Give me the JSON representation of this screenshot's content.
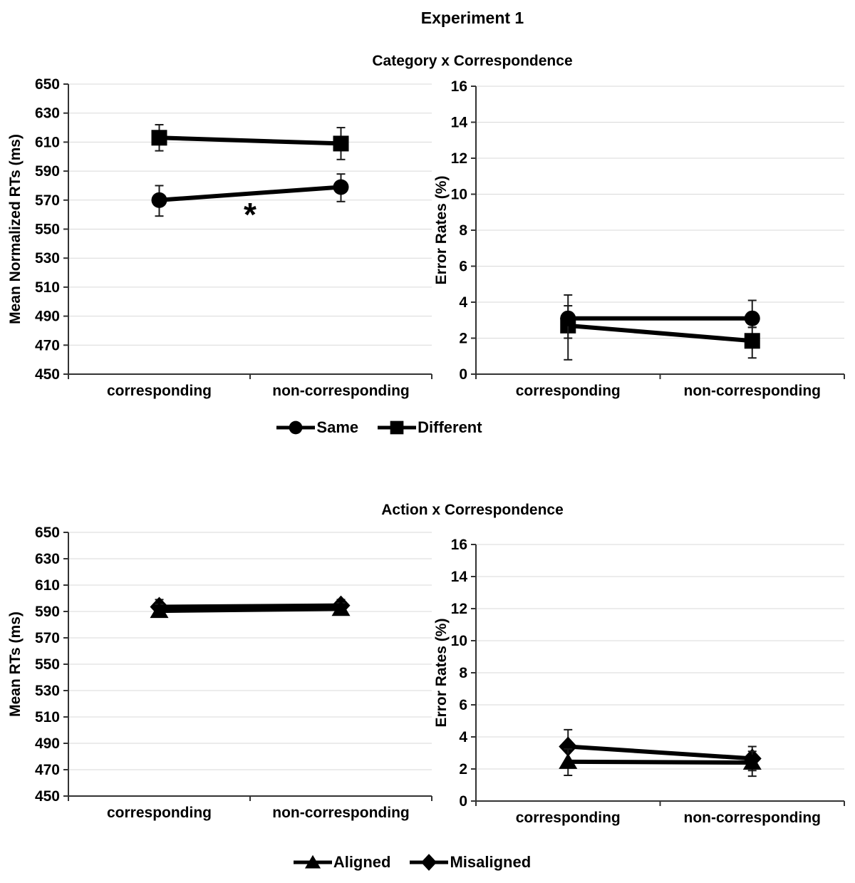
{
  "figure_title": "Experiment 1",
  "colors": {
    "series": "#000000",
    "grid": "#d9d9d9",
    "axis": "#333333",
    "error_bar": "#1a1a1a",
    "text": "#000000",
    "background": "#ffffff"
  },
  "sections": [
    {
      "title": "Category x Correspondence",
      "legend": [
        {
          "label": "Same",
          "marker": "circle"
        },
        {
          "label": "Different",
          "marker": "square"
        }
      ]
    },
    {
      "title": "Action x Correspondence",
      "legend": [
        {
          "label": "Aligned",
          "marker": "triangle"
        },
        {
          "label": "Misaligned",
          "marker": "diamond"
        }
      ]
    }
  ],
  "chart_data": [
    {
      "id": "tl",
      "section": 0,
      "type": "line",
      "ylabel": "Mean Normalized RTs (ms)",
      "ylim": [
        450,
        650
      ],
      "ystep": 20,
      "grid": true,
      "categories": [
        "corresponding",
        "non-corresponding"
      ],
      "series": [
        {
          "name": "Same",
          "marker": "circle",
          "values": [
            570,
            579
          ],
          "err_up": [
            10,
            9
          ],
          "err_dn": [
            11,
            10
          ]
        },
        {
          "name": "Different",
          "marker": "square",
          "values": [
            613,
            609
          ],
          "err_up": [
            9,
            11
          ],
          "err_dn": [
            9,
            11
          ]
        }
      ],
      "annotation": {
        "text": "*",
        "x_frac": 0.5,
        "value": 560
      }
    },
    {
      "id": "tr",
      "section": 0,
      "type": "line",
      "ylabel": "Error Rates (%)",
      "ylim": [
        0,
        16
      ],
      "ystep": 2,
      "grid": true,
      "categories": [
        "corresponding",
        "non-corresponding"
      ],
      "series": [
        {
          "name": "Same",
          "marker": "circle",
          "values": [
            3.1,
            3.1
          ],
          "err_up": [
            1.3,
            1.0
          ],
          "err_dn": [
            1.1,
            0.5
          ]
        },
        {
          "name": "Different",
          "marker": "square",
          "values": [
            2.7,
            1.85
          ],
          "err_up": [
            1.1,
            0.75
          ],
          "err_dn": [
            1.9,
            0.95
          ]
        }
      ]
    },
    {
      "id": "bl",
      "section": 1,
      "type": "line",
      "ylabel": "Mean RTs (ms)",
      "ylim": [
        450,
        650
      ],
      "ystep": 20,
      "grid": true,
      "categories": [
        "corresponding",
        "non-corresponding"
      ],
      "series": [
        {
          "name": "Aligned",
          "marker": "triangle",
          "values": [
            590.5,
            592
          ],
          "err_up": [
            5,
            4.5
          ],
          "err_dn": [
            4.5,
            3.5
          ]
        },
        {
          "name": "Misaligned",
          "marker": "diamond",
          "values": [
            593.5,
            594.5
          ],
          "err_up": [
            5.5,
            4.5
          ],
          "err_dn": [
            4.5,
            4
          ]
        }
      ]
    },
    {
      "id": "br",
      "section": 1,
      "type": "line",
      "ylabel": "Error Rates (%)",
      "ylim": [
        0,
        16
      ],
      "ystep": 2,
      "grid": true,
      "categories": [
        "corresponding",
        "non-corresponding"
      ],
      "series": [
        {
          "name": "Aligned",
          "marker": "triangle",
          "values": [
            2.45,
            2.4
          ],
          "err_up": [
            0.8,
            0.7
          ],
          "err_dn": [
            0.85,
            0.85
          ]
        },
        {
          "name": "Misaligned",
          "marker": "diamond",
          "values": [
            3.4,
            2.65
          ],
          "err_up": [
            1.05,
            0.75
          ],
          "err_dn": [
            1.0,
            0.75
          ]
        }
      ]
    }
  ]
}
